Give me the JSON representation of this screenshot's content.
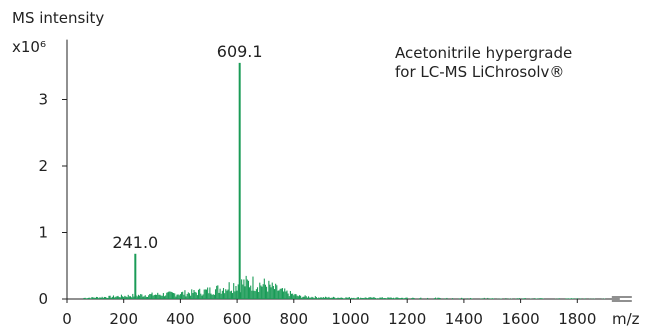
{
  "chart_data": {
    "type": "bar",
    "ylabel": "MS intensity",
    "y_multiplier": "x10⁶",
    "xlabel": "m/z",
    "xlim": [
      0,
      1950
    ],
    "ylim": [
      0,
      3.9
    ],
    "x_ticks": [
      "0",
      "200",
      "400",
      "600",
      "800",
      "1000",
      "1200",
      "1400",
      "1600",
      "1800"
    ],
    "y_ticks": [
      "0",
      "1",
      "2",
      "3"
    ],
    "annotation": {
      "line1": "Acetonitrile hypergrade",
      "line2": "for LC-MS LiChrosolv®",
      "color": "#1a9b57"
    },
    "peaks": [
      {
        "x": 609.1,
        "y": 3.55,
        "label": "609.1"
      },
      {
        "x": 241.0,
        "y": 0.68,
        "label": "241.0"
      }
    ],
    "envelope": [
      [
        60,
        0.02
      ],
      [
        150,
        0.04
      ],
      [
        250,
        0.07
      ],
      [
        350,
        0.09
      ],
      [
        450,
        0.12
      ],
      [
        520,
        0.17
      ],
      [
        560,
        0.22
      ],
      [
        600,
        0.28
      ],
      [
        650,
        0.3
      ],
      [
        700,
        0.26
      ],
      [
        760,
        0.14
      ],
      [
        820,
        0.05
      ],
      [
        900,
        0.03
      ],
      [
        1000,
        0.025
      ],
      [
        1200,
        0.02
      ],
      [
        1400,
        0.015
      ],
      [
        1600,
        0.012
      ],
      [
        1800,
        0.01
      ],
      [
        1900,
        0.008
      ]
    ],
    "grid": false,
    "series_color": "#1a9b57"
  }
}
